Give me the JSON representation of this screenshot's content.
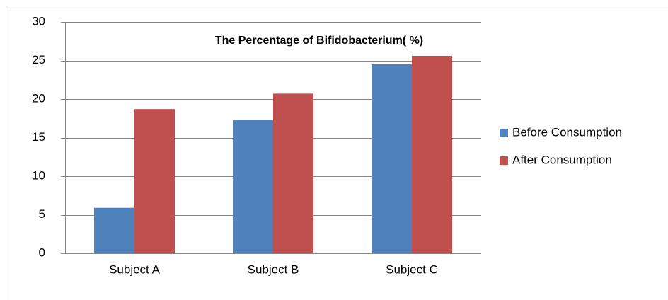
{
  "chart_data": {
    "type": "bar",
    "title": "The Percentage of Bifidobacterium( %)",
    "categories": [
      "Subject A",
      "Subject B",
      "Subject C"
    ],
    "series": [
      {
        "name": "Before Consumption",
        "color": "#4f81bd",
        "values": [
          5.9,
          17.3,
          24.5
        ]
      },
      {
        "name": "After Consumption",
        "color": "#c0504d",
        "values": [
          18.7,
          20.7,
          25.6
        ]
      }
    ],
    "ylim": [
      0,
      30
    ],
    "yticks": [
      0,
      5,
      10,
      15,
      20,
      25,
      30
    ],
    "grid": true,
    "legend": "right"
  }
}
